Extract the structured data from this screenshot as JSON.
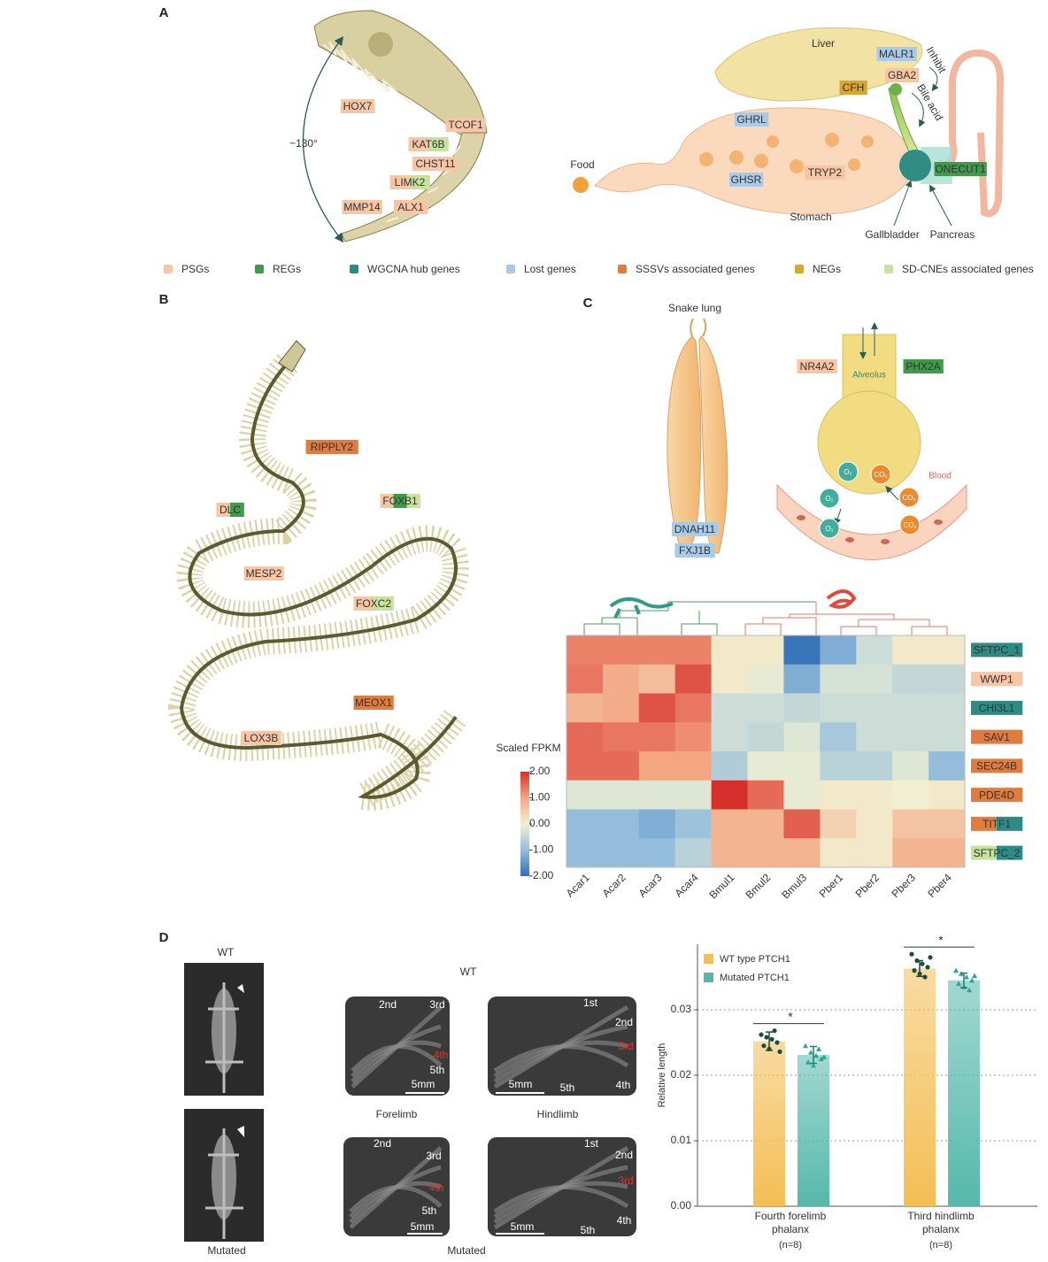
{
  "panel_a": {
    "label": "A",
    "angle": "~130°",
    "skull_tags": [
      {
        "text": "HOX7",
        "colors": [
          "#f7c6a5"
        ]
      },
      {
        "text": "TCOF1",
        "colors": [
          "#f7c6a5"
        ]
      },
      {
        "text": "KAT6B",
        "colors": [
          "#f7c6a5",
          "#c7e29c"
        ]
      },
      {
        "text": "CHST11",
        "colors": [
          "#f7c6a5"
        ]
      },
      {
        "text": "LIMK2",
        "colors": [
          "#f7c6a5",
          "#c7e29c"
        ]
      },
      {
        "text": "MMP14",
        "colors": [
          "#f7c6a5"
        ]
      },
      {
        "text": "ALX1",
        "colors": [
          "#f7c6a5"
        ]
      }
    ],
    "organs": {
      "liver": "Liver",
      "stomach": "Stomach",
      "food": "Food",
      "gallbladder": "Gallbladder",
      "pancreas": "Pancreas",
      "inhibit": "Inhibit",
      "bile_acid": "Bile acid"
    },
    "digestive_tags": [
      {
        "text": "MALR1",
        "colors": [
          "#a8cbe9"
        ]
      },
      {
        "text": "GBA2",
        "colors": [
          "#f7c6a5"
        ]
      },
      {
        "text": "CFH",
        "colors": [
          "#dba62c"
        ]
      },
      {
        "text": "GHRL",
        "colors": [
          "#a8cbe9"
        ]
      },
      {
        "text": "TRYP2",
        "colors": [
          "#f7c6a5"
        ]
      },
      {
        "text": "GHSR",
        "colors": [
          "#a8cbe9"
        ]
      },
      {
        "text": "ONECUT1",
        "colors": [
          "#3f9b4c"
        ]
      }
    ]
  },
  "legend": [
    {
      "name": "PSGs",
      "color": "#f7c6a5"
    },
    {
      "name": "REGs",
      "color": "#3f9b4c"
    },
    {
      "name": "WGCNA hub genes",
      "color": "#2d8b86"
    },
    {
      "name": "Lost genes",
      "color": "#a8cbe9"
    },
    {
      "name": "SSSVs associated genes",
      "color": "#e27b3e"
    },
    {
      "name": "NEGs",
      "color": "#dba62c"
    },
    {
      "name": "SD-CNEs associated genes",
      "color": "#c7e29c"
    }
  ],
  "panel_b": {
    "label": "B",
    "tags": [
      {
        "text": "RIPPLY2",
        "colors": [
          "#e27b3e"
        ]
      },
      {
        "text": "DLC",
        "colors": [
          "#f7c6a5",
          "#3f9b4c"
        ]
      },
      {
        "text": "FOXB1",
        "colors": [
          "#f7c6a5",
          "#3f9b4c",
          "#c7e29c"
        ]
      },
      {
        "text": "MESP2",
        "colors": [
          "#f7c6a5"
        ]
      },
      {
        "text": "FOXC2",
        "colors": [
          "#f7c6a5",
          "#c7e29c"
        ]
      },
      {
        "text": "MEOX1",
        "colors": [
          "#e27b3e"
        ]
      },
      {
        "text": "LOX3B",
        "colors": [
          "#f7c6a5"
        ]
      }
    ]
  },
  "panel_c": {
    "label": "C",
    "lung_title": "Snake lung",
    "lung_tags": [
      {
        "text": "DNAH11",
        "colors": [
          "#a8cbe9"
        ]
      },
      {
        "text": "FXJ1B",
        "colors": [
          "#a8cbe9"
        ]
      }
    ],
    "alveolus": "Alveolus",
    "blood": "Blood",
    "alveolus_tags": [
      {
        "text": "NR4A2",
        "colors": [
          "#f7c6a5"
        ]
      },
      {
        "text": "PHX2A",
        "colors": [
          "#3f9b4c"
        ]
      }
    ],
    "gases": [
      "O₂",
      "CO₂",
      "O₂",
      "CO₂",
      "O₂",
      "CO₂"
    ],
    "heatmap": {
      "type": "heatmap",
      "colorbar_title": "Scaled FPKM",
      "columns": [
        "Acar1",
        "Acar2",
        "Acar3",
        "Acar4",
        "Bmul1",
        "Bmul2",
        "Bmul3",
        "Pber1",
        "Pber2",
        "Pber3",
        "Pber4"
      ],
      "rows": [
        {
          "text": "SFTPC_1",
          "colors": [
            "#2d8b86"
          ]
        },
        {
          "text": "WWP1",
          "colors": [
            "#f7c6a5"
          ]
        },
        {
          "text": "CHI3L1",
          "colors": [
            "#2d8b86"
          ]
        },
        {
          "text": "SAV1",
          "colors": [
            "#e27b3e"
          ]
        },
        {
          "text": "SEC24B",
          "colors": [
            "#e27b3e"
          ]
        },
        {
          "text": "PDE4D",
          "colors": [
            "#e27b3e"
          ]
        },
        {
          "text": "TITF1",
          "colors": [
            "#e27b3e",
            "#2d8b86"
          ]
        },
        {
          "text": "SFTPC_2",
          "colors": [
            "#c7e29c",
            "#2d8b86"
          ]
        }
      ],
      "values": [
        [
          1.3,
          1.3,
          1.3,
          1.3,
          0.1,
          0.1,
          -1.9,
          -1.2,
          -0.4,
          0.1,
          0.1
        ],
        [
          1.4,
          0.9,
          0.7,
          1.7,
          0.1,
          -0.1,
          -1.2,
          -0.3,
          -0.3,
          -0.5,
          -0.5
        ],
        [
          0.8,
          0.9,
          1.7,
          1.4,
          -0.4,
          -0.4,
          -0.5,
          -0.4,
          -0.4,
          -0.4,
          -0.4
        ],
        [
          1.5,
          1.4,
          1.4,
          1.2,
          -0.4,
          -0.5,
          -0.2,
          -0.8,
          -0.4,
          -0.4,
          -0.4
        ],
        [
          1.5,
          1.5,
          1.0,
          1.0,
          -0.7,
          -0.1,
          -0.1,
          -0.6,
          -0.6,
          -0.2,
          -1.0
        ],
        [
          -0.2,
          -0.2,
          -0.2,
          -0.2,
          2.0,
          1.5,
          -0.1,
          0.1,
          0.1,
          0.0,
          0.1
        ],
        [
          -1.0,
          -1.0,
          -1.2,
          -0.9,
          0.8,
          0.8,
          1.6,
          0.4,
          0.1,
          0.6,
          0.6
        ],
        [
          -1.0,
          -1.0,
          -1.0,
          -0.6,
          0.8,
          0.8,
          0.8,
          0.1,
          0.1,
          0.8,
          0.8
        ]
      ],
      "clim": [
        -2,
        2
      ],
      "colormap": [
        "#2f6eb5",
        "#94bddc",
        "#f1f0d2",
        "#f4a582",
        "#d62f2c"
      ],
      "colorbar_ticks": [
        {
          "value": 2,
          "label": "2.00"
        },
        {
          "value": 1,
          "label": "1.00"
        },
        {
          "value": 0,
          "label": "0.00"
        },
        {
          "value": -1,
          "label": "-1.00"
        },
        {
          "value": -2,
          "label": "-2.00"
        }
      ]
    }
  },
  "panel_d": {
    "label": "D",
    "whole_body": {
      "top": "WT",
      "bottom": "Mutated"
    },
    "limbs": {
      "top": "WT",
      "bottom": "Mutated",
      "forelimb": "Forelimb",
      "hindlimb": "Hindlimb",
      "images": [
        {
          "labels": [
            {
              "text": "2nd"
            },
            {
              "text": "3rd"
            },
            {
              "text": "4th",
              "color": "#e8302a"
            },
            {
              "text": "5th"
            }
          ],
          "scale": "5mm"
        },
        {
          "labels": [
            {
              "text": "1st"
            },
            {
              "text": "2nd"
            },
            {
              "text": "3rd",
              "color": "#e8302a"
            },
            {
              "text": "5th"
            },
            {
              "text": "4th"
            }
          ],
          "scale": "5mm"
        },
        {
          "labels": [
            {
              "text": "2nd"
            },
            {
              "text": "3rd"
            },
            {
              "text": "4th",
              "color": "#e8302a"
            },
            {
              "text": "5th"
            }
          ],
          "scale": "5mm"
        },
        {
          "labels": [
            {
              "text": "1st"
            },
            {
              "text": "2nd"
            },
            {
              "text": "3rd",
              "color": "#e8302a"
            },
            {
              "text": "4th"
            },
            {
              "text": "5th"
            }
          ],
          "scale": "5mm"
        }
      ]
    },
    "chart_data": {
      "type": "bar",
      "categories": [
        "Fourth forelimb phalanx",
        "Third hindlimb phalanx"
      ],
      "category_note": "(n=8)",
      "ylabel": "Relative length",
      "ylim": [
        0,
        0.04
      ],
      "yticks": [
        {
          "value": 0,
          "label": "0.00"
        },
        {
          "value": 0.01,
          "label": "0.01"
        },
        {
          "value": 0.02,
          "label": "0.02"
        },
        {
          "value": 0.03,
          "label": "0.03"
        }
      ],
      "grid": true,
      "series": [
        {
          "name": "WT type PTCH1",
          "color": "#f4be55",
          "values": [
            0.0252,
            0.0363
          ],
          "errors": [
            0.0014,
            0.0012
          ],
          "points": [
            [
              0.0262,
              0.0258,
              0.0255,
              0.025,
              0.0245,
              0.024,
              0.0268,
              0.0236
            ],
            [
              0.0385,
              0.0375,
              0.037,
              0.0365,
              0.036,
              0.0355,
              0.035,
              0.038
            ]
          ],
          "point_color": "#1d4d3f"
        },
        {
          "name": "Mutated PTCH1",
          "color": "#55b8ab",
          "values": [
            0.0231,
            0.0345
          ],
          "errors": [
            0.0013,
            0.0011
          ],
          "points": [
            [
              0.0245,
              0.0235,
              0.023,
              0.0225,
              0.022,
              0.0215,
              0.024,
              0.0228
            ],
            [
              0.036,
              0.0355,
              0.035,
              0.0345,
              0.034,
              0.0335,
              0.033,
              0.0352
            ]
          ],
          "point_color": "#2aa592"
        }
      ],
      "significance": [
        "*",
        "*"
      ]
    }
  }
}
